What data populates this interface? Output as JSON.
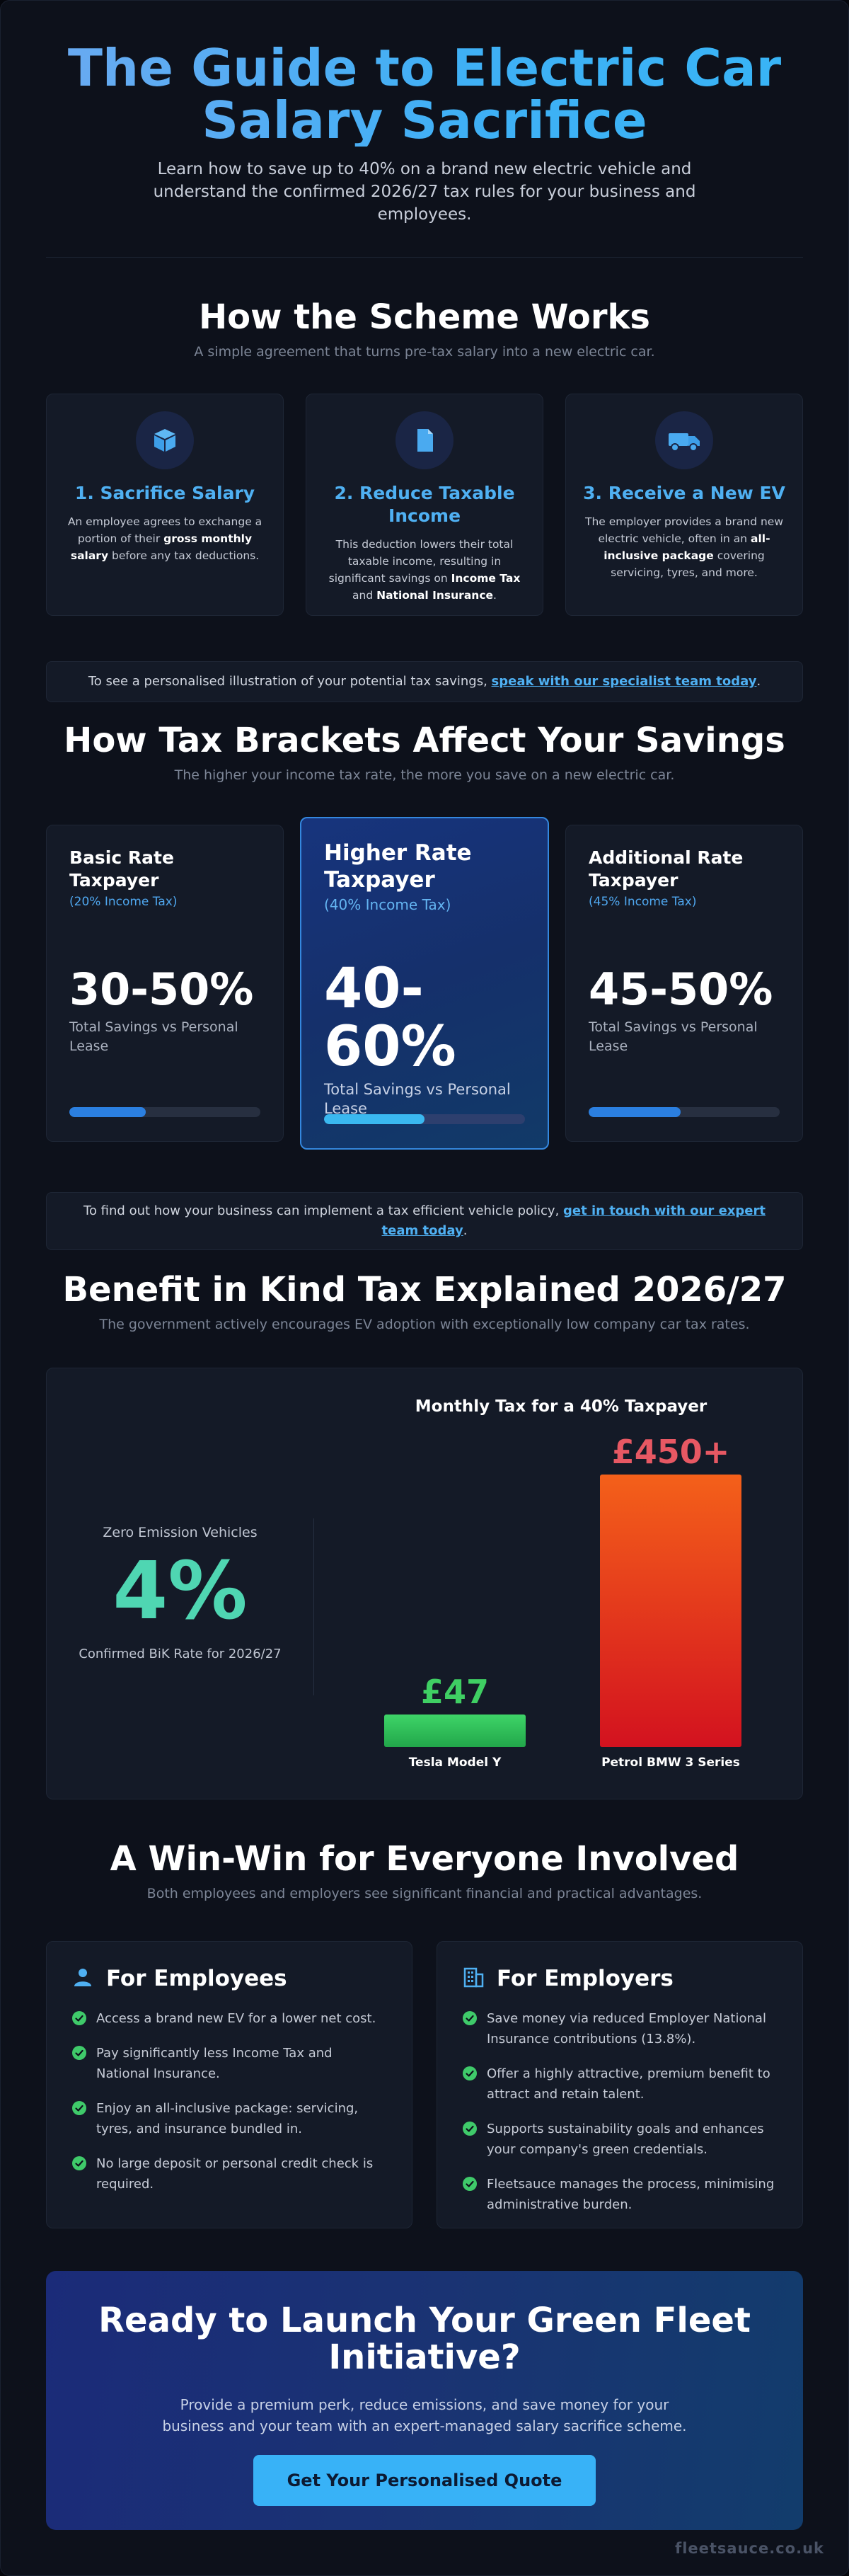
{
  "hero": {
    "title_line1": "The Guide to Electric Car",
    "title_line2": "Salary Sacrifice",
    "subtitle": "Learn how to save up to 40% on a brand new electric vehicle and understand the confirmed 2026/27 tax rules for your business and employees."
  },
  "scheme": {
    "title": "How the Scheme Works",
    "subtitle": "A simple agreement that turns pre-tax salary into a new electric car.",
    "steps": [
      {
        "icon": "box-icon",
        "title": "1. Sacrifice Salary",
        "text_before": "An employee agrees to exchange a portion of their ",
        "bold1": "gross monthly salary",
        "text_after": " before any tax deductions."
      },
      {
        "icon": "document-icon",
        "title": "2. Reduce Taxable Income",
        "text_before": "This deduction lowers their total taxable income, resulting in significant savings on ",
        "bold1": "Income Tax",
        "text_mid": " and ",
        "bold2": "National Insurance",
        "text_after": "."
      },
      {
        "icon": "truck-icon",
        "title": "3. Receive a New EV",
        "text_before": "The employer provides a brand new electric vehicle, often in an ",
        "bold1": "all-inclusive package",
        "text_after": " covering servicing, tyres, and more."
      }
    ]
  },
  "banner1": {
    "text": "To see a personalised illustration of your potential tax savings, ",
    "link": "speak with our specialist team today",
    "end": "."
  },
  "brackets": {
    "title": "How Tax Brackets Affect Your Savings",
    "subtitle": "The higher your income tax rate, the more you save on a new electric car.",
    "items": [
      {
        "title": "Basic Rate Taxpayer",
        "rate": "(20% Income Tax)",
        "value": "30-50%",
        "note": "Total Savings vs Personal Lease",
        "fill": 0.4
      },
      {
        "title": "Higher Rate Taxpayer",
        "rate": "(40% Income Tax)",
        "value": "40-60%",
        "note": "Total Savings vs Personal Lease",
        "fill": 0.5
      },
      {
        "title": "Additional Rate Taxpayer",
        "rate": "(45% Income Tax)",
        "value": "45-50%",
        "note": "Total Savings vs Personal Lease",
        "fill": 0.48
      }
    ]
  },
  "banner2": {
    "text": "To find out how your business can implement a tax efficient vehicle policy, ",
    "link": "get in touch with our expert team today",
    "end": "."
  },
  "bik": {
    "title": "Benefit in Kind Tax Explained 2026/27",
    "subtitle": "The government actively encourages EV adoption with exceptionally low company car tax rates.",
    "label": "Zero Emission Vehicles",
    "rate": "4%",
    "caption": "Confirmed BiK Rate for 2026/27"
  },
  "chart_data": {
    "type": "bar",
    "title": "Monthly Tax for a 40% Taxpayer",
    "categories": [
      "Tesla Model Y",
      "Petrol BMW 3 Series"
    ],
    "values": [
      47,
      450
    ],
    "data_labels": [
      "£47",
      "£450+"
    ],
    "colors": [
      "#33c05a",
      "#f0521e"
    ],
    "ylim": [
      0,
      450
    ],
    "grid": false,
    "legend": "none"
  },
  "winwin": {
    "title": "A Win-Win for Everyone Involved",
    "subtitle": "Both employees and employers see significant financial and practical advantages.",
    "employees": {
      "title": "For Employees",
      "items": [
        "Access a brand new EV for a lower net cost.",
        "Pay significantly less Income Tax and National Insurance.",
        "Enjoy an all-inclusive package: servicing, tyres, and insurance bundled in.",
        "No large deposit or personal credit check is required."
      ]
    },
    "employers": {
      "title": "For Employers",
      "items": [
        "Save money via reduced Employer National Insurance contributions (13.8%).",
        "Offer a highly attractive, premium benefit to attract and retain talent.",
        "Supports sustainability goals and enhances your company's green credentials.",
        "Fleetsauce manages the process, minimising administrative burden."
      ]
    }
  },
  "cta": {
    "title": "Ready to Launch Your Green Fleet Initiative?",
    "subtitle": "Provide a premium perk, reduce emissions, and save money for your business and your team with an expert-managed salary sacrifice scheme.",
    "button": "Get Your Personalised Quote"
  },
  "footer": {
    "brand": "fleetsauce.co.uk"
  },
  "colors": {
    "accent": "#4fb0f2",
    "bik_green": "#4fd6b2",
    "check_green": "#3fca6a",
    "tesla_bar": "#33c05a",
    "bmw_bar": "#f0521e",
    "bmw_label": "#e75863"
  }
}
